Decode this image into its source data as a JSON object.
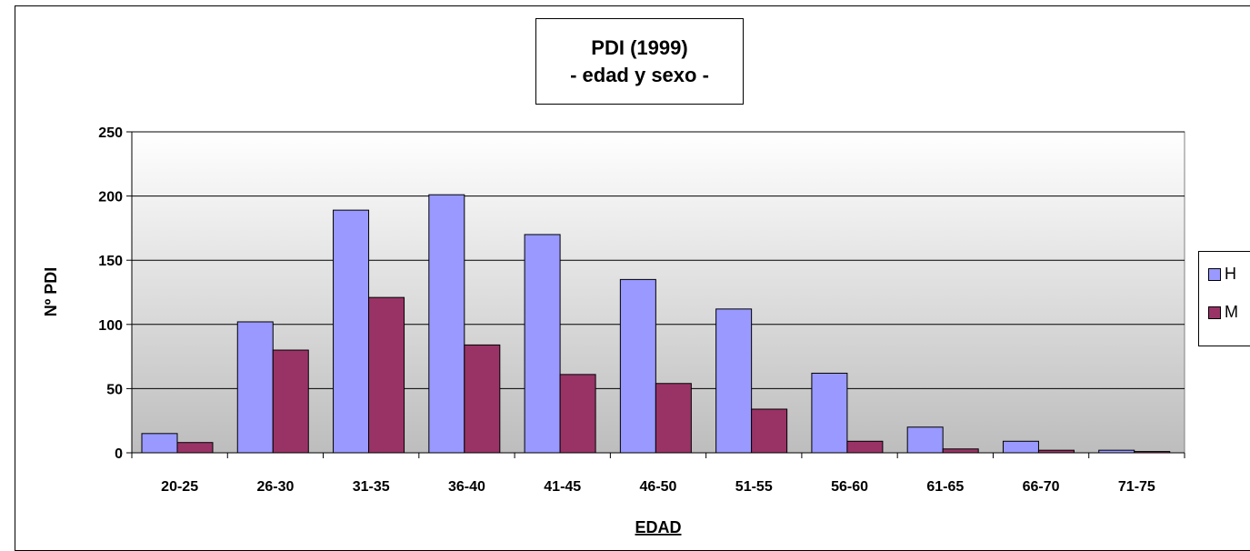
{
  "title": {
    "line1": "PDI (1999)",
    "line2": "- edad y sexo -"
  },
  "chart_data": {
    "type": "bar",
    "categories": [
      "20-25",
      "26-30",
      "31-35",
      "36-40",
      "41-45",
      "46-50",
      "51-55",
      "56-60",
      "61-65",
      "66-70",
      "71-75"
    ],
    "series": [
      {
        "name": "H",
        "color": "#9999ff",
        "values": [
          15,
          102,
          189,
          201,
          170,
          135,
          112,
          62,
          20,
          9,
          2
        ]
      },
      {
        "name": "M",
        "color": "#993366",
        "values": [
          8,
          80,
          121,
          84,
          61,
          54,
          34,
          9,
          3,
          2,
          1
        ]
      }
    ],
    "xlabel": "EDAD",
    "ylabel": "Nº PDI",
    "ylim": [
      0,
      250
    ],
    "yticks": [
      0,
      50,
      100,
      150,
      200,
      250
    ],
    "grid": true,
    "legend_position": "right"
  }
}
